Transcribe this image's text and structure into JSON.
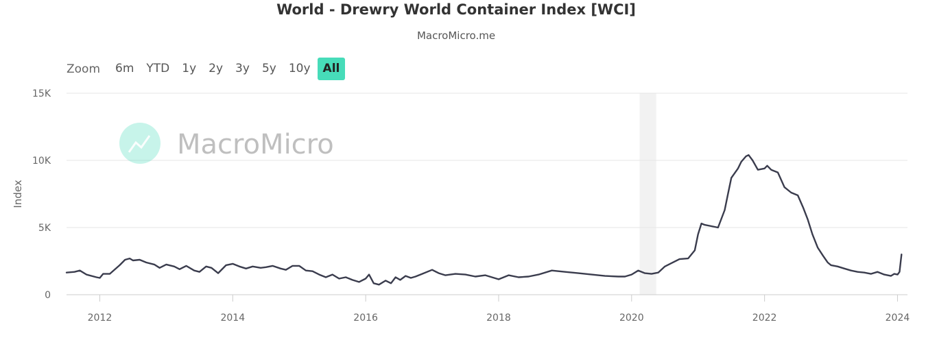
{
  "header": {
    "title": "World - Drewry World Container Index [WCI]",
    "subtitle": "MacroMicro.me"
  },
  "zoom": {
    "label": "Zoom",
    "buttons": [
      "6m",
      "YTD",
      "1y",
      "2y",
      "3y",
      "5y",
      "10y",
      "All"
    ],
    "active": "All"
  },
  "watermark": {
    "text": "MacroMicro"
  },
  "colors": {
    "line": "#3a3c4d",
    "accent": "#47dcb9",
    "grid": "#e6e6e6",
    "recession": "#f2f2f2"
  },
  "chart_data": {
    "type": "line",
    "title": "World - Drewry World Container Index [WCI]",
    "subtitle": "MacroMicro.me",
    "xlabel": "",
    "ylabel": "Index",
    "xlim": [
      2011.5,
      2024.15
    ],
    "ylim": [
      0,
      15000
    ],
    "yticks": [
      0,
      5000,
      10000,
      15000
    ],
    "ytick_labels": [
      "0",
      "5K",
      "10K",
      "15K"
    ],
    "xticks": [
      2012,
      2014,
      2016,
      2018,
      2020,
      2022,
      2024
    ],
    "xtick_labels": [
      "2012",
      "2014",
      "2016",
      "2018",
      "2020",
      "2022",
      "2024"
    ],
    "shaded_regions": [
      {
        "label": "recession",
        "x0": 2020.12,
        "x1": 2020.37
      }
    ],
    "series": [
      {
        "name": "Drewry World Container Index [WCI]",
        "x": [
          2011.5,
          2011.62,
          2011.7,
          2011.8,
          2011.95,
          2012.0,
          2012.05,
          2012.15,
          2012.3,
          2012.38,
          2012.45,
          2012.5,
          2012.6,
          2012.7,
          2012.82,
          2012.9,
          2013.0,
          2013.12,
          2013.2,
          2013.3,
          2013.42,
          2013.5,
          2013.6,
          2013.68,
          2013.78,
          2013.9,
          2014.0,
          2014.1,
          2014.2,
          2014.3,
          2014.42,
          2014.5,
          2014.6,
          2014.72,
          2014.8,
          2014.9,
          2015.0,
          2015.1,
          2015.2,
          2015.3,
          2015.4,
          2015.5,
          2015.6,
          2015.7,
          2015.8,
          2015.9,
          2016.0,
          2016.05,
          2016.12,
          2016.2,
          2016.3,
          2016.38,
          2016.45,
          2016.52,
          2016.6,
          2016.68,
          2016.75,
          2016.85,
          2017.0,
          2017.1,
          2017.2,
          2017.35,
          2017.5,
          2017.65,
          2017.8,
          2018.0,
          2018.15,
          2018.3,
          2018.45,
          2018.6,
          2018.8,
          2019.0,
          2019.2,
          2019.4,
          2019.6,
          2019.8,
          2019.9,
          2020.0,
          2020.1,
          2020.2,
          2020.3,
          2020.4,
          2020.5,
          2020.6,
          2020.72,
          2020.85,
          2020.95,
          2021.0,
          2021.05,
          2021.1,
          2021.2,
          2021.3,
          2021.4,
          2021.45,
          2021.5,
          2021.6,
          2021.65,
          2021.72,
          2021.76,
          2021.82,
          2021.9,
          2022.0,
          2022.04,
          2022.1,
          2022.2,
          2022.3,
          2022.4,
          2022.5,
          2022.58,
          2022.65,
          2022.72,
          2022.8,
          2022.88,
          2022.95,
          2023.0,
          2023.1,
          2023.2,
          2023.3,
          2023.4,
          2023.5,
          2023.6,
          2023.7,
          2023.8,
          2023.9,
          2023.95,
          2024.0,
          2024.03,
          2024.06
        ],
        "values": [
          1650,
          1700,
          1800,
          1500,
          1300,
          1250,
          1550,
          1550,
          2200,
          2600,
          2700,
          2550,
          2600,
          2400,
          2250,
          2000,
          2250,
          2100,
          1900,
          2150,
          1800,
          1700,
          2100,
          2000,
          1600,
          2200,
          2300,
          2100,
          1950,
          2100,
          2000,
          2050,
          2150,
          1950,
          1850,
          2150,
          2150,
          1800,
          1750,
          1500,
          1300,
          1500,
          1200,
          1300,
          1100,
          950,
          1200,
          1500,
          850,
          750,
          1050,
          850,
          1300,
          1100,
          1400,
          1250,
          1350,
          1550,
          1850,
          1600,
          1450,
          1550,
          1500,
          1350,
          1450,
          1150,
          1450,
          1300,
          1350,
          1500,
          1800,
          1700,
          1600,
          1500,
          1400,
          1350,
          1350,
          1500,
          1800,
          1600,
          1550,
          1650,
          2100,
          2350,
          2650,
          2700,
          3300,
          4500,
          5300,
          5200,
          5100,
          5000,
          6300,
          7500,
          8700,
          9400,
          9900,
          10300,
          10400,
          10000,
          9300,
          9400,
          9600,
          9300,
          9100,
          8000,
          7600,
          7400,
          6500,
          5600,
          4500,
          3500,
          2900,
          2400,
          2200,
          2100,
          1950,
          1800,
          1700,
          1650,
          1550,
          1700,
          1500,
          1400,
          1550,
          1500,
          1700,
          3000
        ]
      }
    ]
  }
}
